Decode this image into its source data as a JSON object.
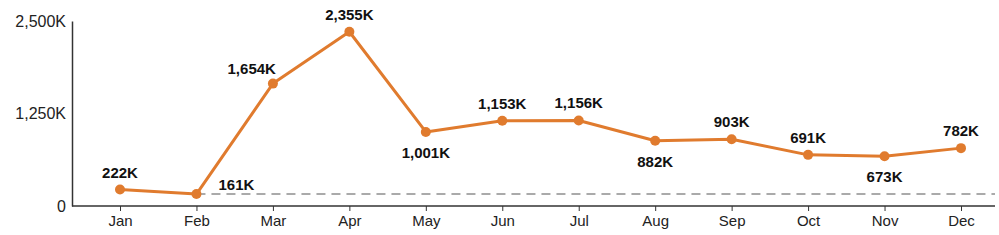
{
  "chart_data": {
    "type": "line",
    "categories": [
      "Jan",
      "Feb",
      "Mar",
      "Apr",
      "May",
      "Jun",
      "Jul",
      "Aug",
      "Sep",
      "Oct",
      "Nov",
      "Dec"
    ],
    "values": [
      222,
      161,
      1654,
      2355,
      1001,
      1153,
      1156,
      882,
      903,
      691,
      673,
      782
    ],
    "value_labels": [
      "222K",
      "161K",
      "1,654K",
      "2,355K",
      "1,001K",
      "1,153K",
      "1,156K",
      "882K",
      "903K",
      "691K",
      "673K",
      "782K"
    ],
    "color": "#e07b2e",
    "marker": "circle",
    "data_labels": true,
    "grid": false,
    "ylim": [
      0,
      2500
    ],
    "yticks": [
      0,
      {
        "value": 1250,
        "label": "1,250K"
      },
      {
        "value": 2500,
        "label": "2,500K"
      }
    ],
    "reference_line": {
      "value": 161,
      "start": "Feb",
      "line_style": "dashed"
    }
  }
}
